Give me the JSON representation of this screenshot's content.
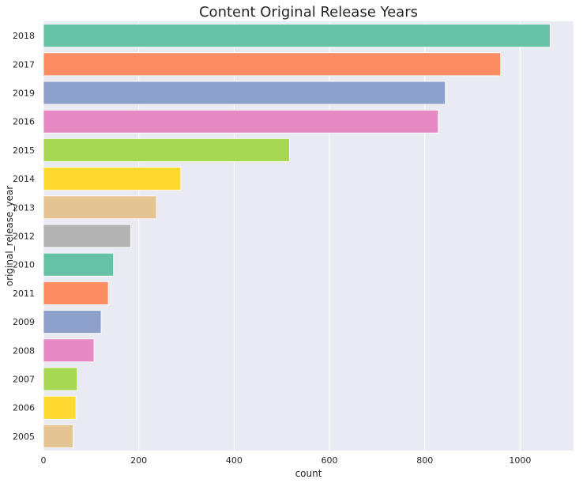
{
  "chart_data": {
    "type": "bar",
    "orientation": "horizontal",
    "title": "Content Original Release Years",
    "xlabel": "count",
    "ylabel": "original_release_year",
    "categories": [
      "2018",
      "2017",
      "2019",
      "2016",
      "2015",
      "2014",
      "2013",
      "2012",
      "2010",
      "2011",
      "2009",
      "2008",
      "2007",
      "2006",
      "2005"
    ],
    "values": [
      1063,
      959,
      843,
      828,
      516,
      288,
      237,
      183,
      147,
      136,
      121,
      106,
      71,
      68,
      62
    ],
    "xlim": [
      0,
      1112
    ],
    "xticks": [
      0,
      200,
      400,
      600,
      800,
      1000
    ],
    "grid": true,
    "background_color": "#eaeaf2",
    "bar_colors": [
      "#66c2a5",
      "#fc8d62",
      "#8da0cb",
      "#e78ac3",
      "#a6d854",
      "#ffd92f",
      "#e5c494",
      "#b3b3b3",
      "#66c2a5",
      "#fc8d62",
      "#8da0cb",
      "#e78ac3",
      "#a6d854",
      "#ffd92f",
      "#e5c494"
    ]
  }
}
